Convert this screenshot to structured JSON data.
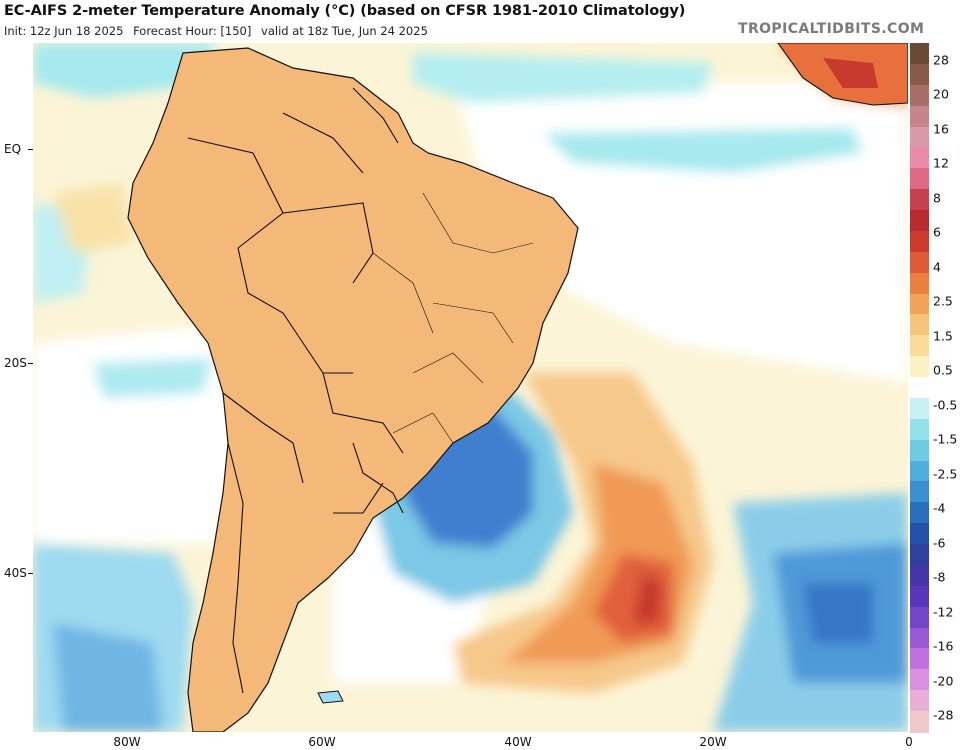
{
  "title": "EC-AIFS 2-meter Temperature Anomaly (°C) (based on CFSR 1981-2010 Climatology)",
  "subtitle": {
    "init": "Init: 12z Jun 18 2025",
    "forecast_hour": "Forecast Hour: [150]",
    "valid": "valid at 18z Tue, Jun 24 2025"
  },
  "credit": "TROPICALTIDBITS.COM",
  "map": {
    "lat_labels": [
      "EQ",
      "20S",
      "40S"
    ],
    "lon_labels": [
      "80W",
      "60W",
      "40W",
      "20W",
      "0"
    ]
  },
  "colorbar": {
    "labels": [
      "28",
      "20",
      "16",
      "12",
      "8",
      "6",
      "4",
      "2.5",
      "1.5",
      "0.5",
      "-0.5",
      "-1.5",
      "-2.5",
      "-4",
      "-6",
      "-8",
      "-12",
      "-16",
      "-20",
      "-28"
    ],
    "colors": [
      "#6b4a34",
      "#8a5a48",
      "#a96e6a",
      "#c4858d",
      "#d99aa8",
      "#e98aa8",
      "#e06a86",
      "#c64050",
      "#b62a30",
      "#cc3a2e",
      "#df5a36",
      "#ec8040",
      "#f2a458",
      "#f6c47a",
      "#f8dc98",
      "#fcf1c4",
      "#ffffff",
      "#c6f0f2",
      "#92e0ea",
      "#6ecbe4",
      "#4fafdc",
      "#3a8fd0",
      "#2a6ec0",
      "#2351a8",
      "#2f3f9c",
      "#4436a8",
      "#5a36b8",
      "#7646c8",
      "#9a5ad8",
      "#c070e0",
      "#d890e0",
      "#e8b0d8",
      "#f0c8cc"
    ]
  }
}
